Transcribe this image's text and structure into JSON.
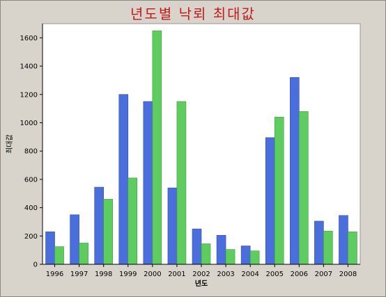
{
  "chart_data": {
    "type": "bar",
    "title": "년도별 낙뢰 최대값",
    "xlabel": "년도",
    "ylabel": "최대값",
    "categories": [
      "1996",
      "1997",
      "1998",
      "1999",
      "2000",
      "2001",
      "2002",
      "2003",
      "2004",
      "2005",
      "2006",
      "2007",
      "2008"
    ],
    "series": [
      {
        "color": "#4a6fdc",
        "values": [
          230,
          350,
          545,
          1200,
          1150,
          540,
          250,
          205,
          130,
          895,
          1320,
          305,
          345
        ]
      },
      {
        "color": "#5ecc5e",
        "values": [
          125,
          150,
          460,
          610,
          1650,
          1150,
          145,
          105,
          95,
          1040,
          1080,
          235,
          230
        ]
      }
    ],
    "ylim": [
      0,
      1700
    ],
    "yticks": [
      "0",
      "200",
      "400",
      "600",
      "800",
      "1000",
      "1200",
      "1400",
      "1600"
    ],
    "grid": false,
    "background": "#d8d4cb",
    "plot_background": "#ffffff",
    "title_color": "#c41a1a"
  }
}
